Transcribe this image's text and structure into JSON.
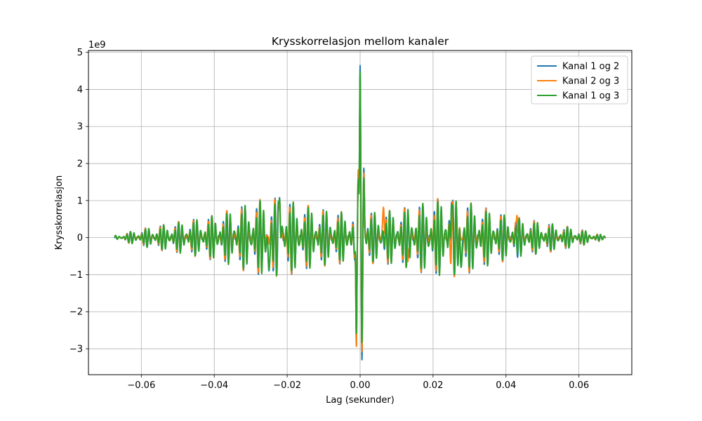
{
  "chart_data": {
    "type": "line",
    "title": "Krysskorrelasjon mellom kanaler",
    "xlabel": "Lag (sekunder)",
    "ylabel": "Krysskorrelasjon",
    "y_offset_label": "1e9",
    "xlim": [
      -0.0745,
      0.0745
    ],
    "ylim": [
      -3.7,
      5.05
    ],
    "x_ticks": [
      -0.06,
      -0.04,
      -0.02,
      0.0,
      0.02,
      0.04,
      0.06
    ],
    "x_tick_labels": [
      "−0.06",
      "−0.04",
      "−0.02",
      "0.00",
      "0.02",
      "0.04",
      "0.06"
    ],
    "y_ticks": [
      -3,
      -2,
      -1,
      0,
      1,
      2,
      3,
      4,
      5
    ],
    "y_tick_labels": [
      "−3",
      "−2",
      "−1",
      "0",
      "1",
      "2",
      "3",
      "4",
      "5"
    ],
    "grid": true,
    "legend_position": "top-right",
    "x_range": [
      -0.0673,
      0.0673
    ],
    "series": [
      {
        "name": "Kanal 1 og 2",
        "color": "#1f77b4",
        "peaks": [
          {
            "x": -0.00102,
            "y": -2.95
          },
          {
            "x": -0.00051,
            "y": 1.75
          },
          {
            "x": 0.0,
            "y": 4.68
          },
          {
            "x": 0.00051,
            "y": -3.32
          },
          {
            "x": 0.00102,
            "y": 1.88
          },
          {
            "x": -0.0221,
            "y": 1.08
          },
          {
            "x": -0.025,
            "y": -0.9
          },
          {
            "x": 0.0251,
            "y": 0.96
          },
          {
            "x": 0.0277,
            "y": -0.8
          }
        ]
      },
      {
        "name": "Kanal 2 og 3",
        "color": "#ff7f0e",
        "peaks": [
          {
            "x": -0.00102,
            "y": -2.97
          },
          {
            "x": -0.00051,
            "y": 1.82
          },
          {
            "x": 0.0,
            "y": 4.3
          },
          {
            "x": 0.00051,
            "y": -3.1
          },
          {
            "x": 0.00102,
            "y": 1.75
          },
          {
            "x": -0.0221,
            "y": 1.0
          },
          {
            "x": 0.0064,
            "y": 0.82
          },
          {
            "x": 0.043,
            "y": 0.6
          },
          {
            "x": 0.0131,
            "y": -0.65
          }
        ]
      },
      {
        "name": "Kanal 1 og 3",
        "color": "#2ca02c",
        "peaks": [
          {
            "x": -0.00102,
            "y": -2.62
          },
          {
            "x": -0.00051,
            "y": 1.55
          },
          {
            "x": 0.0,
            "y": 4.5
          },
          {
            "x": 0.00051,
            "y": -2.85
          },
          {
            "x": 0.00102,
            "y": 1.62
          },
          {
            "x": -0.0221,
            "y": 1.05
          },
          {
            "x": -0.025,
            "y": -0.88
          },
          {
            "x": 0.0251,
            "y": 0.9
          },
          {
            "x": 0.0277,
            "y": -0.8
          }
        ]
      }
    ]
  }
}
